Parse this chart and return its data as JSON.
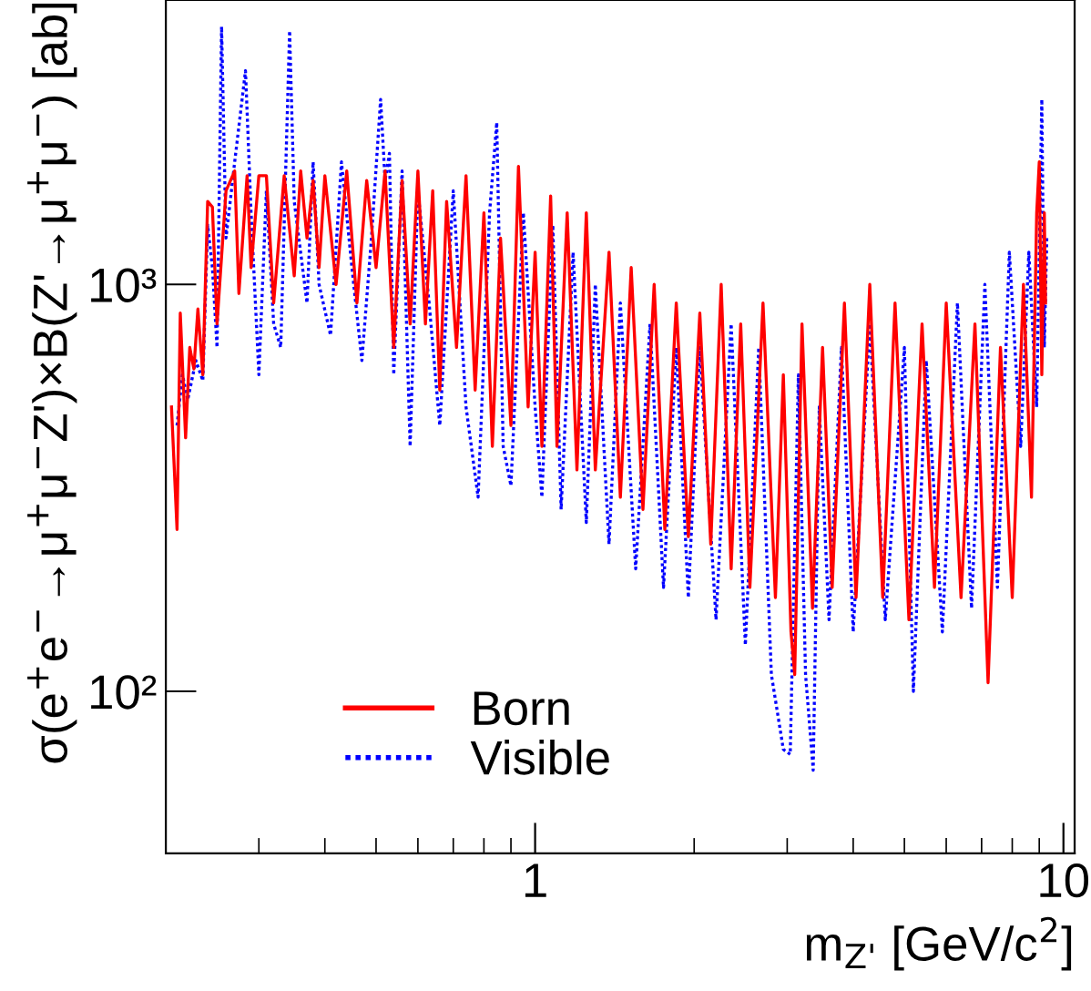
{
  "chart_data": {
    "type": "line",
    "xlabel": "m$_{Z'}$ [GeV/c$^{2}$]",
    "ylabel": "σ(e$^{+}$e$^{−}$→μ$^{+}$μ$^{−}$Z')×B(Z'→μ$^{+}$μ$^{−}$) [ab]",
    "log": "xy",
    "xlim": [
      0.2,
      10.5
    ],
    "ylim": [
      40,
      5000
    ],
    "xticks": [
      1,
      10
    ],
    "yticks": [
      {
        "value": 100,
        "label": "10²"
      },
      {
        "value": 1000,
        "label": "10³"
      }
    ],
    "grid": false,
    "legend": "bottom left",
    "series": [
      {
        "name": "Visible",
        "color": "#0000ff",
        "line_style": "dotted",
        "x": [
          0.21,
          0.215,
          0.22,
          0.228,
          0.235,
          0.24,
          0.245,
          0.25,
          0.255,
          0.26,
          0.27,
          0.283,
          0.29,
          0.3,
          0.31,
          0.32,
          0.33,
          0.343,
          0.35,
          0.37,
          0.38,
          0.39,
          0.41,
          0.43,
          0.45,
          0.47,
          0.49,
          0.51,
          0.52,
          0.53,
          0.54,
          0.56,
          0.58,
          0.6,
          0.63,
          0.66,
          0.7,
          0.74,
          0.78,
          0.82,
          0.846,
          0.87,
          0.9,
          0.95,
          1.0,
          1.03,
          1.08,
          1.12,
          1.18,
          1.25,
          1.3,
          1.38,
          1.45,
          1.55,
          1.65,
          1.75,
          1.85,
          1.95,
          2.05,
          2.2,
          2.35,
          2.5,
          2.65,
          2.8,
          2.95,
          3.04,
          3.15,
          3.25,
          3.36,
          3.45,
          3.6,
          3.8,
          4.0,
          4.3,
          4.6,
          5.0,
          5.2,
          5.5,
          5.9,
          6.3,
          6.7,
          7.1,
          7.5,
          7.9,
          8.3,
          8.6,
          8.9,
          9.1,
          9.2,
          9.3
        ],
        "values": [
          450,
          600,
          520,
          650,
          580,
          1400,
          1100,
          700,
          4300,
          1300,
          2000,
          3350,
          1500,
          600,
          1700,
          800,
          700,
          4200,
          1600,
          900,
          2000,
          1000,
          750,
          2000,
          1100,
          650,
          1300,
          2850,
          1800,
          2100,
          600,
          1900,
          400,
          1700,
          900,
          450,
          1700,
          500,
          300,
          1500,
          2500,
          400,
          320,
          1500,
          500,
          300,
          1400,
          280,
          1200,
          260,
          1000,
          230,
          900,
          200,
          800,
          180,
          700,
          170,
          700,
          150,
          800,
          130,
          700,
          110,
          72,
          70,
          600,
          110,
          64,
          500,
          150,
          700,
          140,
          800,
          150,
          700,
          100,
          650,
          140,
          900,
          160,
          1000,
          180,
          1200,
          400,
          1200,
          500,
          2850,
          700,
          1300
        ]
      },
      {
        "name": "Born",
        "color": "#ff0000",
        "line_style": "solid",
        "x": [
          0.205,
          0.21,
          0.213,
          0.218,
          0.222,
          0.226,
          0.23,
          0.235,
          0.24,
          0.245,
          0.25,
          0.26,
          0.27,
          0.275,
          0.285,
          0.29,
          0.3,
          0.31,
          0.32,
          0.335,
          0.35,
          0.36,
          0.37,
          0.38,
          0.39,
          0.4,
          0.42,
          0.44,
          0.46,
          0.48,
          0.5,
          0.52,
          0.54,
          0.56,
          0.58,
          0.6,
          0.62,
          0.64,
          0.66,
          0.68,
          0.71,
          0.74,
          0.77,
          0.8,
          0.83,
          0.86,
          0.9,
          0.93,
          0.97,
          1.0,
          1.03,
          1.07,
          1.1,
          1.15,
          1.2,
          1.25,
          1.3,
          1.38,
          1.45,
          1.52,
          1.6,
          1.68,
          1.76,
          1.85,
          1.95,
          2.05,
          2.15,
          2.25,
          2.35,
          2.45,
          2.55,
          2.7,
          2.85,
          2.95,
          3.05,
          3.1,
          3.2,
          3.35,
          3.5,
          3.65,
          3.85,
          4.05,
          4.3,
          4.55,
          4.8,
          5.1,
          5.4,
          5.7,
          6.0,
          6.4,
          6.8,
          7.2,
          7.6,
          8.0,
          8.4,
          8.7,
          8.9,
          9.0,
          9.1,
          9.2,
          9.25
        ],
        "values": [
          500,
          250,
          850,
          420,
          700,
          620,
          870,
          600,
          1600,
          1550,
          800,
          1700,
          1900,
          950,
          1850,
          1100,
          1850,
          1850,
          900,
          1850,
          1050,
          1900,
          1300,
          1800,
          1100,
          1850,
          1000,
          1900,
          900,
          1800,
          1100,
          1900,
          700,
          1800,
          800,
          1900,
          800,
          1700,
          550,
          1600,
          700,
          1850,
          550,
          1500,
          400,
          1300,
          450,
          1950,
          500,
          1200,
          400,
          1650,
          400,
          1500,
          350,
          1500,
          350,
          1200,
          300,
          1100,
          280,
          1000,
          250,
          900,
          240,
          850,
          230,
          1000,
          200,
          800,
          180,
          900,
          170,
          600,
          140,
          110,
          800,
          160,
          700,
          180,
          900,
          170,
          1000,
          170,
          900,
          150,
          800,
          180,
          900,
          170,
          800,
          105,
          700,
          170,
          1000,
          300,
          1500,
          2000,
          600,
          1500,
          900
        ]
      }
    ]
  }
}
